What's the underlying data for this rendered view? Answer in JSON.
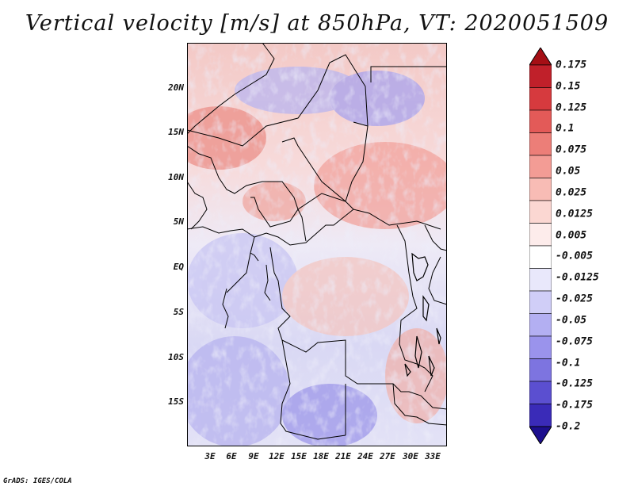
{
  "title": "Vertical velocity [m/s] at 850hPa, VT: 2020051509",
  "credit": "GrADS: IGES/COLA",
  "map": {
    "lat_labels": [
      "20N",
      "15N",
      "10N",
      "5N",
      "EQ",
      "5S",
      "10S",
      "15S"
    ],
    "lon_labels": [
      "3E",
      "6E",
      "9E",
      "12E",
      "15E",
      "18E",
      "21E",
      "24E",
      "27E",
      "30E",
      "33E"
    ]
  },
  "colorbar": {
    "labels": [
      "0.175",
      "0.15",
      "0.125",
      "0.1",
      "0.075",
      "0.05",
      "0.025",
      "0.0125",
      "0.005",
      "-0.005",
      "-0.0125",
      "-0.025",
      "-0.05",
      "-0.075",
      "-0.1",
      "-0.125",
      "-0.175",
      "-0.2"
    ],
    "colors": [
      "#a50f15",
      "#c0202a",
      "#d63a3e",
      "#e35a58",
      "#ec7e78",
      "#f39c95",
      "#f8bcb5",
      "#fbd7d2",
      "#fdeceb",
      "#ffffff",
      "#e9e8fb",
      "#d0cef7",
      "#b3aff2",
      "#9a93ec",
      "#7d74e0",
      "#5b4fd0",
      "#3a2bb8",
      "#1d0f8e"
    ]
  }
}
